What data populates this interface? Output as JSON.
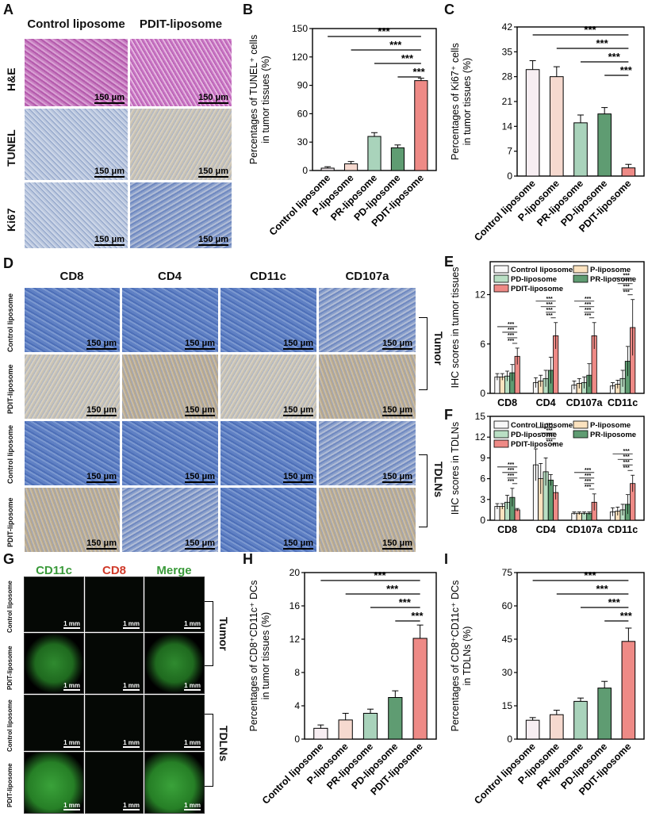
{
  "labels": {
    "A": "A",
    "B": "B",
    "C": "C",
    "D": "D",
    "E": "E",
    "F": "F",
    "G": "G",
    "H": "H",
    "I": "I"
  },
  "panelA": {
    "col_headers": [
      "Control liposome",
      "PDIT-liposome"
    ],
    "row_labels": [
      "H&E",
      "TUNEL",
      "Ki67"
    ],
    "scale": "150 μm"
  },
  "panelD": {
    "col_headers": [
      "CD8",
      "CD4",
      "CD11c",
      "CD107a"
    ],
    "row_labels": [
      "Control liposome",
      "PDIT-liposome",
      "Control liposome",
      "PDIT-liposome"
    ],
    "group_labels": [
      "Tumor",
      "TDLNs"
    ],
    "scale": "150 μm"
  },
  "panelG": {
    "col_headers": [
      "CD11c",
      "CD8",
      "Merge"
    ],
    "col_colors": [
      "#3a9a3a",
      "#d03a2a",
      "#3a9a3a"
    ],
    "row_labels": [
      "Control liposome",
      "PDIT-liposome",
      "Control liposome",
      "PDIT-liposome"
    ],
    "group_labels": [
      "Tumor",
      "TDLNs"
    ],
    "scale": "1 mm"
  },
  "colors": {
    "control": "#f7eef2",
    "p": "#f6d9cf",
    "pr": "#a9d3bb",
    "pd": "#5f9c72",
    "pdit": "#ee8a86",
    "e_control": "#f7f7f7",
    "e_p": "#fbe2bf",
    "e_pd": "#b9dfc4",
    "e_pr": "#5f9c72",
    "e_pdit": "#ee8a86"
  },
  "sig": "***",
  "chart_data": [
    {
      "id": "B",
      "type": "bar",
      "categories": [
        "Control liposome",
        "P-liposome",
        "PR-liposome",
        "PD-liposome",
        "PDIT-liposome"
      ],
      "values": [
        2.5,
        7,
        36,
        24,
        95
      ],
      "errors": [
        1.5,
        2.5,
        4,
        3,
        2.5
      ],
      "ylabel_lines": [
        "Percentages of TUNEL⁺ cells",
        "in tumor tissues (%)"
      ],
      "ylim": [
        0,
        150
      ],
      "yticks": [
        0,
        30,
        60,
        90,
        120,
        150
      ],
      "significance": [
        "***",
        "***",
        "***",
        "***"
      ]
    },
    {
      "id": "C",
      "type": "bar",
      "categories": [
        "Control liposome",
        "P-liposome",
        "PR-liposome",
        "PD-liposome",
        "PDIT-liposome"
      ],
      "values": [
        30,
        28,
        15,
        17.5,
        2.3
      ],
      "errors": [
        2.5,
        2.8,
        2.2,
        1.8,
        1
      ],
      "ylabel_lines": [
        "Percentages of Ki67⁺ cells",
        "in tumor tissues (%)"
      ],
      "ylim": [
        0,
        42
      ],
      "yticks": [
        0,
        7,
        14,
        21,
        28,
        35,
        42
      ],
      "significance": [
        "***",
        "***",
        "***",
        "***"
      ]
    },
    {
      "id": "E",
      "type": "bar",
      "categories": [
        "CD8",
        "CD4",
        "CD107a",
        "CD11c"
      ],
      "series": [
        {
          "name": "Control liposome",
          "values": [
            2,
            1.3,
            1,
            0.9
          ],
          "errors": [
            0.4,
            0.6,
            0.5,
            0.4
          ]
        },
        {
          "name": "P-liposome",
          "values": [
            2,
            1.5,
            1.2,
            1.1
          ],
          "errors": [
            0.4,
            0.7,
            0.6,
            0.5
          ]
        },
        {
          "name": "PD-liposome",
          "values": [
            2.1,
            1.8,
            1.3,
            1.8
          ],
          "errors": [
            0.6,
            1.0,
            0.7,
            1.0
          ]
        },
        {
          "name": "PR-liposome",
          "values": [
            2.5,
            2.8,
            2.2,
            3.9
          ],
          "errors": [
            1.0,
            1.6,
            1.4,
            1.8
          ]
        },
        {
          "name": "PDIT-liposome",
          "values": [
            4.5,
            7,
            7,
            8
          ],
          "errors": [
            1.0,
            1.6,
            1.6,
            3.4
          ]
        }
      ],
      "ylabel": "IHC scores in tumor tissues",
      "ylim": [
        0,
        16
      ],
      "yticks": [
        0,
        6,
        12
      ],
      "legend_order": [
        "Control liposome",
        "P-liposome",
        "PD-liposome",
        "PR-liposome",
        "PDIT-liposome"
      ],
      "significance": [
        "***",
        "***",
        "***",
        "***"
      ]
    },
    {
      "id": "F",
      "type": "bar",
      "categories": [
        "CD8",
        "CD4",
        "CD107a",
        "CD11c"
      ],
      "series": [
        {
          "name": "Control liposome",
          "values": [
            2,
            8,
            1,
            1.2
          ],
          "errors": [
            0.4,
            2.3,
            0.2,
            0.6
          ]
        },
        {
          "name": "P-liposome",
          "values": [
            2,
            6,
            1,
            1.3
          ],
          "errors": [
            0.4,
            2.2,
            0.2,
            0.6
          ]
        },
        {
          "name": "PD-liposome",
          "values": [
            2.6,
            7,
            1,
            1.5
          ],
          "errors": [
            1.0,
            2.0,
            0.2,
            0.8
          ]
        },
        {
          "name": "PR-liposome",
          "values": [
            3.3,
            5.8,
            1,
            2.3
          ],
          "errors": [
            1.3,
            0.8,
            0.2,
            1.4
          ]
        },
        {
          "name": "PDIT-liposome",
          "values": [
            1.5,
            4,
            2.6,
            5.3
          ],
          "errors": [
            0.2,
            1.0,
            1.2,
            1.2
          ]
        }
      ],
      "ylabel": "IHC scores in  TDLNs",
      "ylim": [
        0,
        15
      ],
      "yticks": [
        0,
        3,
        6,
        9,
        12,
        15
      ],
      "legend_order": [
        "Control liposome",
        "P-liposome",
        "PD-liposome",
        "PR-liposome",
        "PDIT-liposome"
      ],
      "significance": [
        "***",
        "***",
        "***",
        "***"
      ]
    },
    {
      "id": "H",
      "type": "bar",
      "categories": [
        "Control liposome",
        "P-liposome",
        "PR-liposome",
        "PD-liposome",
        "PDIT-liposome"
      ],
      "values": [
        1.3,
        2.3,
        3.1,
        5,
        12.1
      ],
      "errors": [
        0.4,
        0.8,
        0.5,
        0.8,
        1.6
      ],
      "ylabel_lines": [
        "Percentages of  CD8⁺CD11c⁺ DCs",
        "in tumor tissues (%)"
      ],
      "ylim": [
        0,
        20
      ],
      "yticks": [
        0,
        4,
        8,
        12,
        16,
        20
      ],
      "significance": [
        "***",
        "***",
        "***",
        "***"
      ]
    },
    {
      "id": "I",
      "type": "bar",
      "categories": [
        "Control liposome",
        "P-liposome",
        "PR-liposome",
        "PD-liposome",
        "PDIT-liposome"
      ],
      "values": [
        8.5,
        11,
        17,
        23,
        44
      ],
      "errors": [
        1.2,
        2,
        1.5,
        3,
        6
      ],
      "ylabel_lines": [
        "Percentages of  CD8⁺CD11c⁺ DCs",
        "in TDLNs (%)"
      ],
      "ylim": [
        0,
        75
      ],
      "yticks": [
        0,
        15,
        30,
        45,
        60,
        75
      ],
      "significance": [
        "***",
        "***",
        "***",
        "***"
      ]
    }
  ]
}
